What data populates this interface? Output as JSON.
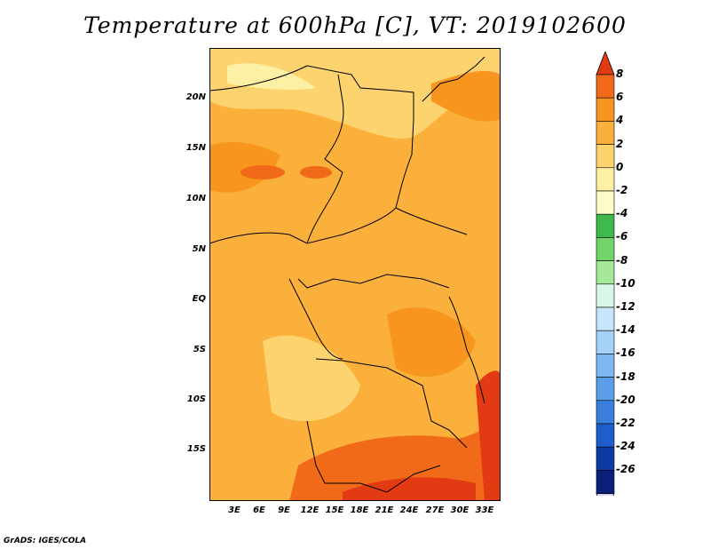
{
  "title": "Temperature at 600hPa [C], VT: 2019102600",
  "credit": "GrADS: IGES/COLA",
  "lat_labels": [
    "20N",
    "15N",
    "10N",
    "5N",
    "EQ",
    "5S",
    "10S",
    "15S"
  ],
  "lon_labels": [
    "3E",
    "6E",
    "9E",
    "12E",
    "15E",
    "18E",
    "21E",
    "24E",
    "27E",
    "30E",
    "33E"
  ],
  "colorbar": {
    "labels": [
      "8",
      "6",
      "4",
      "2",
      "0",
      "-2",
      "-4",
      "-6",
      "-8",
      "-10",
      "-12",
      "-14",
      "-16",
      "-18",
      "-20",
      "-22",
      "-24",
      "-26"
    ],
    "colors": [
      "#e23a12",
      "#f16a19",
      "#f7951f",
      "#fab03a",
      "#fcd36e",
      "#fdf0a5",
      "#fefbc8",
      "#3fb84d",
      "#72d36a",
      "#a6e89a",
      "#d9f7e6",
      "#c8e6fb",
      "#a4d1f7",
      "#7eb8f0",
      "#5b9de8",
      "#3a7fdd",
      "#1d5ecc",
      "#0d3aa4",
      "#0b1f7a",
      "#d7d2f3"
    ]
  }
}
